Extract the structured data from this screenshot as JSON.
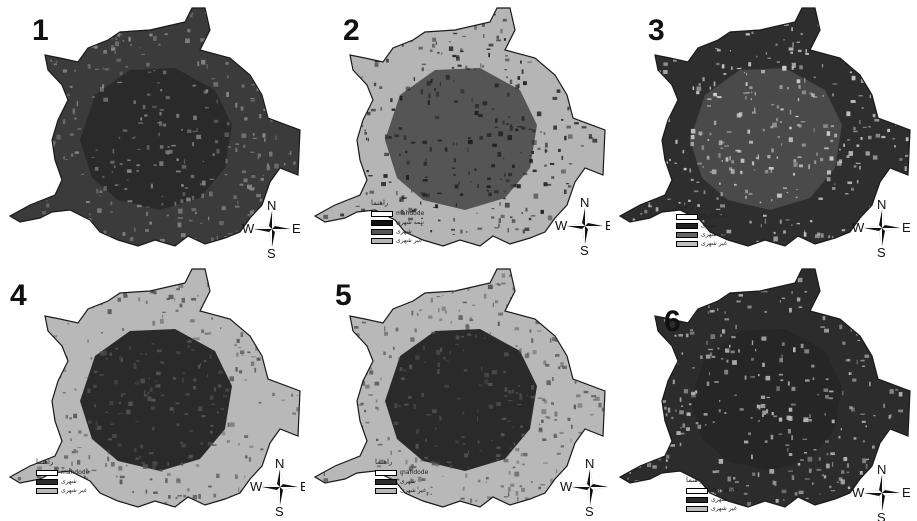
{
  "panels": [
    {
      "number": "1",
      "fill": "#3b3b3b",
      "core": "#2a2a2a",
      "texture": "#8a8a8a",
      "legend": null
    },
    {
      "number": "2",
      "fill": "#b5b5b5",
      "core": "#555555",
      "texture": "#1e1e1e",
      "legend": {
        "title": "راهنما",
        "items": [
          {
            "label": "mahdode",
            "color": "#ffffff"
          },
          {
            "label": "نیمه شهری",
            "color": "#111111"
          },
          {
            "label": "شهری",
            "color": "#555555"
          },
          {
            "label": "غیر شهری",
            "color": "#b5b5b5"
          }
        ]
      }
    },
    {
      "number": "3",
      "fill": "#2e2e2e",
      "core": "#4a4a4a",
      "texture": "#d0d0d0",
      "legend": {
        "title": "راهنما",
        "items": [
          {
            "label": "mahdode",
            "color": "#ffffff"
          },
          {
            "label": "شهری",
            "color": "#222222"
          },
          {
            "label": "نیمه شهری",
            "color": "#666666"
          },
          {
            "label": "غیر شهری",
            "color": "#c0c0c0"
          }
        ]
      }
    },
    {
      "number": "4",
      "fill": "#b8b8b8",
      "core": "#2a2a2a",
      "texture": "#555555",
      "legend": {
        "title": "راهنما",
        "items": [
          {
            "label": "mahdode",
            "color": "#ffffff"
          },
          {
            "label": "شهری",
            "color": "#2a2a2a"
          },
          {
            "label": "غیر شهری",
            "color": "#b8b8b8"
          }
        ]
      }
    },
    {
      "number": "5",
      "fill": "#b8b8b8",
      "core": "#2a2a2a",
      "texture": "#555555",
      "legend": {
        "title": "راهنما",
        "items": [
          {
            "label": "mahdode",
            "color": "#ffffff"
          },
          {
            "label": "شهری",
            "color": "#2a2a2a"
          },
          {
            "label": "غیر شهری",
            "color": "#b8b8b8"
          }
        ]
      }
    },
    {
      "number": "6",
      "fill": "#2c2c2c",
      "core": "#262626",
      "texture": "#bdbdbd",
      "legend": {
        "title": "راهنما",
        "items": [
          {
            "label": "mahdode",
            "color": "#ffffff"
          },
          {
            "label": "شهری",
            "color": "#2a2a2a"
          },
          {
            "label": "غیر شهری",
            "color": "#bdbdbd"
          }
        ]
      }
    }
  ],
  "compass": {
    "n": "N",
    "s": "S",
    "e": "E",
    "w": "W"
  }
}
